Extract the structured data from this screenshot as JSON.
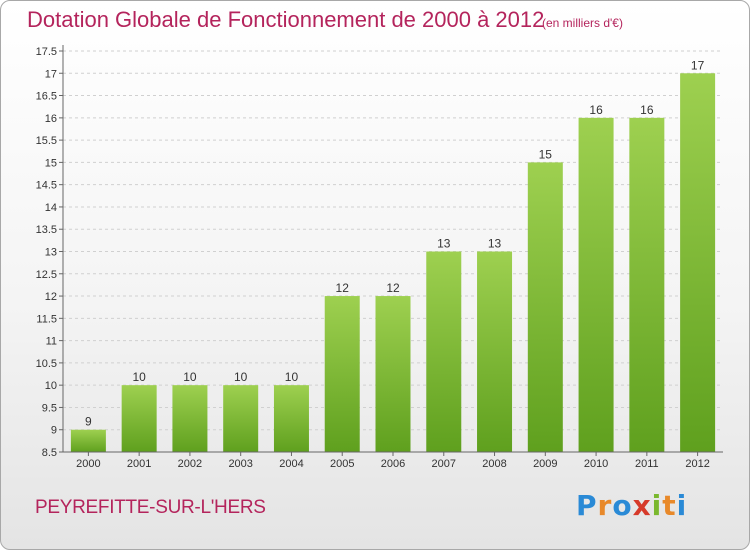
{
  "title": "Dotation Globale de Fonctionnement de 2000 à 2012",
  "subtitle": "(en milliers d'€)",
  "place": "PEYREFITTE-SUR-L'HERS",
  "logo": {
    "letters": [
      "P",
      "r",
      "o",
      "x",
      "i",
      "t",
      "i"
    ],
    "colors": [
      "#2a8ad6",
      "#e8892a",
      "#2a8ad6",
      "#d63a2a",
      "#7ab82e",
      "#e8892a",
      "#2a8ad6"
    ]
  },
  "colors": {
    "title": "#b4245c",
    "bar_top": "#9ed050",
    "bar_bottom": "#5fa01e",
    "grid": "#d0d0d0",
    "axis": "#666666"
  },
  "chart_data": {
    "type": "bar",
    "title": "Dotation Globale de Fonctionnement de 2000 à 2012",
    "subtitle": "(en milliers d'€)",
    "categories": [
      "2000",
      "2001",
      "2002",
      "2003",
      "2004",
      "2005",
      "2006",
      "2007",
      "2008",
      "2009",
      "2010",
      "2011",
      "2012"
    ],
    "values": [
      9,
      10,
      10,
      10,
      10,
      12,
      12,
      13,
      13,
      15,
      16,
      16,
      17
    ],
    "data_labels": [
      "9",
      "10",
      "10",
      "10",
      "10",
      "12",
      "12",
      "13",
      "13",
      "15",
      "16",
      "16",
      "17"
    ],
    "ylim": [
      8.5,
      17.5
    ],
    "yticks": [
      "8.5",
      "9",
      "9.5",
      "10",
      "10.5",
      "11",
      "11.5",
      "12",
      "12.5",
      "13",
      "13.5",
      "14",
      "14.5",
      "15",
      "15.5",
      "16",
      "16.5",
      "17",
      "17.5"
    ],
    "grid": true,
    "xlabel": "",
    "ylabel": ""
  }
}
